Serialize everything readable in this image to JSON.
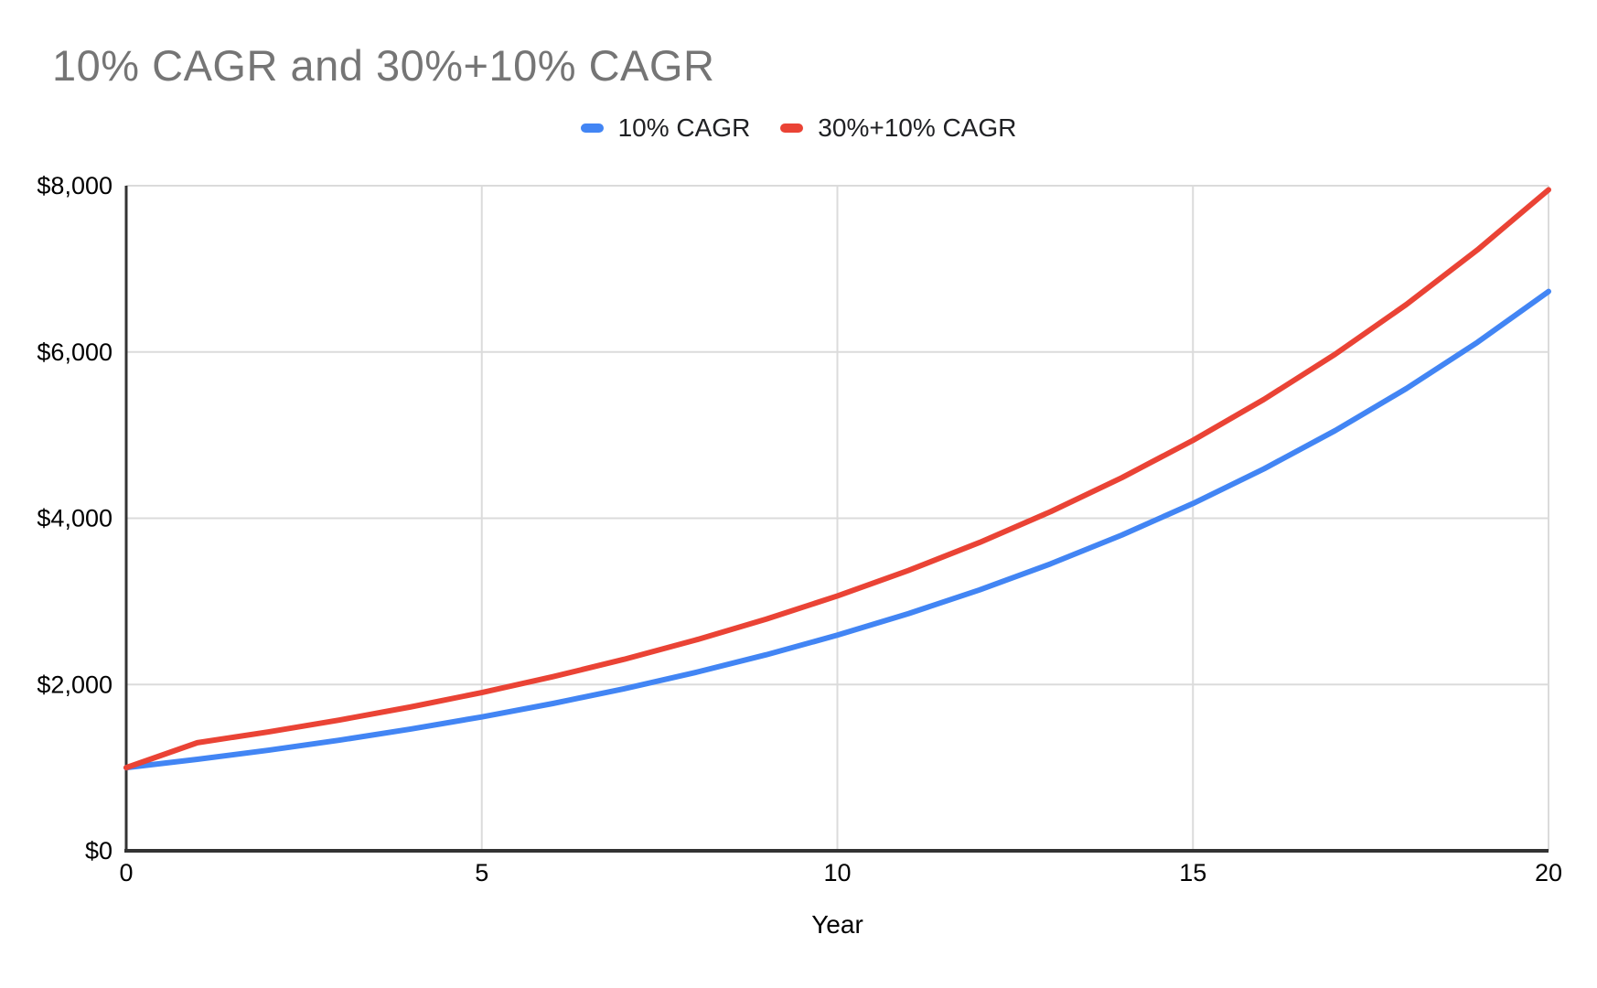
{
  "title": "10% CAGR and 30%+10% CAGR",
  "colors": {
    "background": "#FFFFFF",
    "title_text": "#757575",
    "legend_text": "#202124",
    "tick_text": "#000000",
    "gridline": "#DBDBDB",
    "axis_line": "#333333",
    "series_blue": "#4285F4",
    "series_red": "#EA4335"
  },
  "legend": {
    "position": "top-center",
    "items": [
      {
        "label": "10% CAGR",
        "color": "#4285F4"
      },
      {
        "label": "30%+10% CAGR",
        "color": "#EA4335"
      }
    ]
  },
  "chart_data": {
    "type": "line",
    "title": "10% CAGR and 30%+10% CAGR",
    "xlabel": "Year",
    "ylabel": "",
    "xlim": [
      0,
      20
    ],
    "ylim": [
      0,
      8000
    ],
    "grid": true,
    "legend_position": "top",
    "x": [
      0,
      1,
      2,
      3,
      4,
      5,
      6,
      7,
      8,
      9,
      10,
      11,
      12,
      13,
      14,
      15,
      16,
      17,
      18,
      19,
      20
    ],
    "x_ticks": [
      {
        "value": 0,
        "label": "0"
      },
      {
        "value": 5,
        "label": "5"
      },
      {
        "value": 10,
        "label": "10"
      },
      {
        "value": 15,
        "label": "15"
      },
      {
        "value": 20,
        "label": "20"
      }
    ],
    "y_ticks": [
      {
        "value": 0,
        "label": "$0"
      },
      {
        "value": 2000,
        "label": "$2,000"
      },
      {
        "value": 4000,
        "label": "$4,000"
      },
      {
        "value": 6000,
        "label": "$6,000"
      },
      {
        "value": 8000,
        "label": "$8,000"
      }
    ],
    "series": [
      {
        "name": "10% CAGR",
        "color": "#4285F4",
        "values": [
          1000,
          1100,
          1210,
          1331,
          1464.1,
          1610.51,
          1771.56,
          1948.72,
          2143.59,
          2357.95,
          2593.74,
          2853.12,
          3138.43,
          3452.27,
          3797.5,
          4177.25,
          4594.97,
          5054.47,
          5559.92,
          6115.91,
          6727.5
        ]
      },
      {
        "name": "30%+10% CAGR",
        "color": "#EA4335",
        "values": [
          1000,
          1300,
          1430,
          1573,
          1730.3,
          1903.33,
          2093.66,
          2303.03,
          2533.33,
          2786.66,
          3065.33,
          3371.86,
          3709.05,
          4079.95,
          4487.95,
          4936.74,
          5430.41,
          5973.45,
          6570.8,
          7227.88,
          7950.66
        ]
      }
    ]
  }
}
